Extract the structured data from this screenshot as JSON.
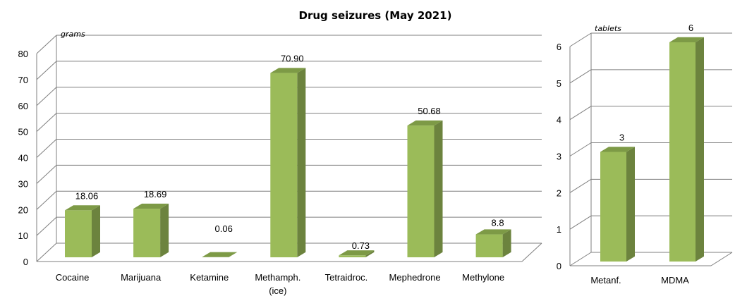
{
  "title": "Drug seizures (May 2021)",
  "colors": {
    "bar_front": "#9BBB59",
    "bar_side": "#6C833E",
    "bar_top": "#7D9A46",
    "grid": "#7F7F7F"
  },
  "chart_data": [
    {
      "type": "bar",
      "unit_label": "grams",
      "categories": [
        "Cocaine",
        "Marijuana",
        "Ketamine",
        "Methamph.\n(ice)",
        "Tetraidroc.",
        "Mephedrone",
        "Methylone"
      ],
      "values": [
        18.06,
        18.69,
        0.06,
        70.9,
        0.73,
        50.68,
        8.8
      ],
      "value_labels": [
        "18.06",
        "18.69",
        "0.06",
        "70.90",
        "0.73",
        "50.68",
        "8.8"
      ],
      "ylim": [
        0,
        80
      ],
      "yticks": [
        0,
        10,
        20,
        30,
        40,
        50,
        60,
        70,
        80
      ],
      "grid": true
    },
    {
      "type": "bar",
      "unit_label": "tablets",
      "categories": [
        "Metanf.",
        "MDMA"
      ],
      "values": [
        3,
        6
      ],
      "value_labels": [
        "3",
        "6"
      ],
      "ylim": [
        0,
        6
      ],
      "yticks": [
        0,
        1,
        2,
        3,
        4,
        5,
        6
      ],
      "grid": true
    }
  ]
}
